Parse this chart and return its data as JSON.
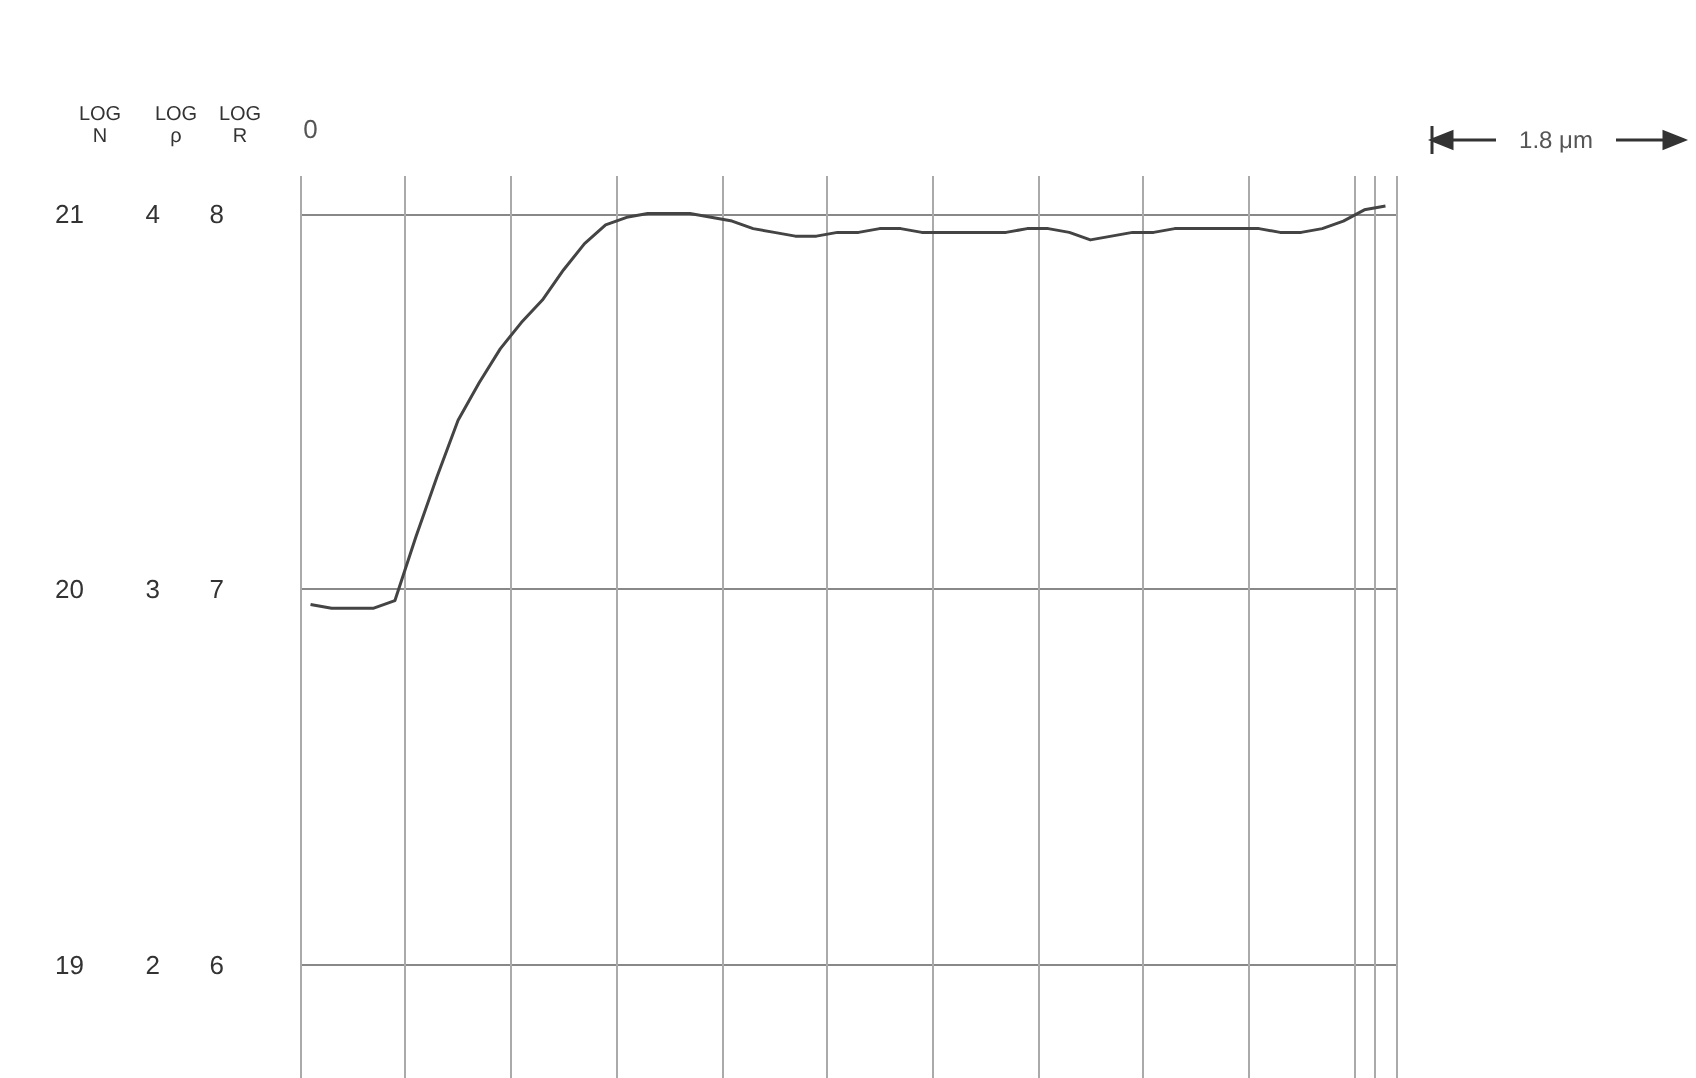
{
  "chart_data": {
    "type": "line",
    "categories": [
      null,
      null,
      null,
      null,
      null,
      null,
      null,
      null,
      null,
      null,
      null,
      null,
      null,
      null,
      null,
      null,
      null,
      null,
      null,
      null,
      null,
      null,
      null,
      null,
      null,
      null,
      null,
      null,
      null,
      null,
      null,
      null,
      null,
      null,
      null,
      null,
      null,
      null,
      null,
      null,
      null,
      null,
      null,
      null,
      null,
      null,
      null,
      null,
      null,
      null,
      null,
      null
    ],
    "series": [
      {
        "color": "#444444",
        "values": [
          6.96,
          6.95,
          6.95,
          6.95,
          6.97,
          7.14,
          7.3,
          7.45,
          7.55,
          7.64,
          7.71,
          7.77,
          7.85,
          7.92,
          7.97,
          7.99,
          8.0,
          8.0,
          8.0,
          7.99,
          7.98,
          7.96,
          7.95,
          7.94,
          7.94,
          7.95,
          7.95,
          7.96,
          7.96,
          7.95,
          7.95,
          7.95,
          7.95,
          7.95,
          7.96,
          7.96,
          7.95,
          7.93,
          7.94,
          7.95,
          7.95,
          7.96,
          7.96,
          7.96,
          7.96,
          7.96,
          7.95,
          7.95,
          7.96,
          7.98,
          8.01,
          8.02
        ]
      }
    ],
    "ylabel": "LOG\nR",
    "y2label": "LOG\nρ",
    "y3label": "LOG\nN",
    "ylim": [
      5.7,
      8.1
    ],
    "yticks": [
      6,
      7,
      8
    ],
    "y2lim": [
      1.7,
      4.1
    ],
    "y2ticks": [
      2,
      3,
      4
    ],
    "y3lim": [
      18.7,
      21.1
    ],
    "y3ticks": [
      19,
      20,
      21
    ],
    "annotations": [
      "0",
      "1.8 μm"
    ],
    "tick_labels": "y",
    "grid": true,
    "marker": "none",
    "line_style": "solid"
  }
}
